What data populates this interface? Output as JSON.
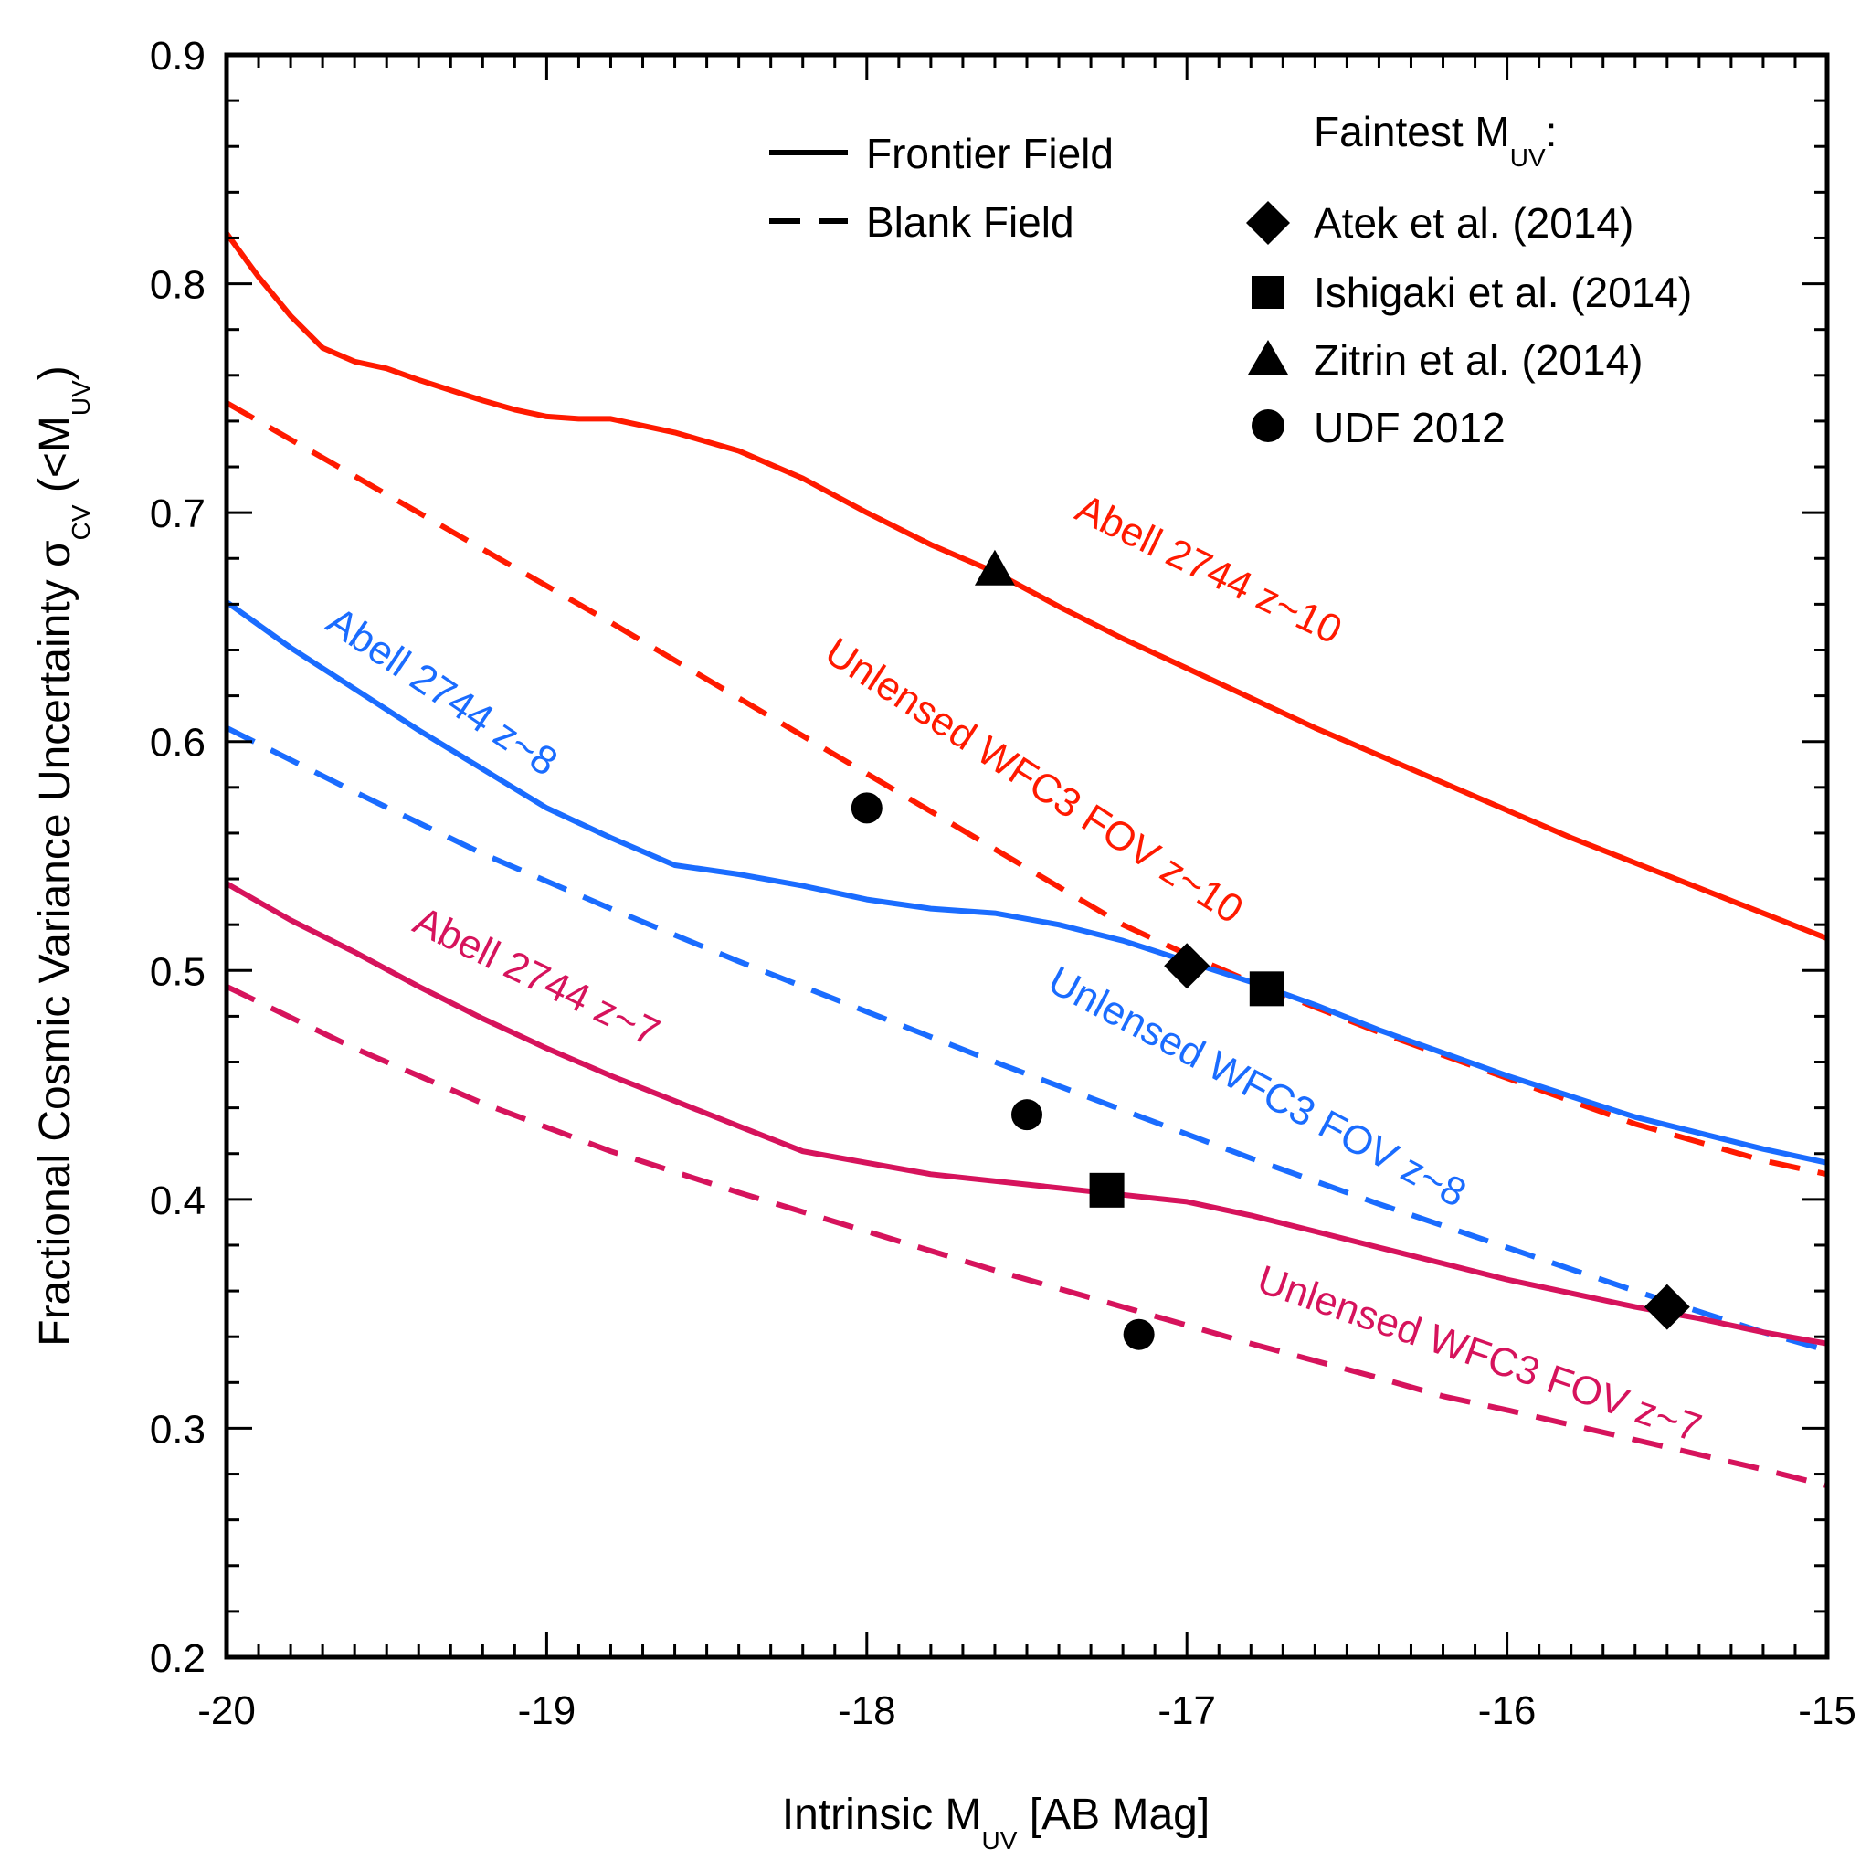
{
  "chart_data": {
    "type": "line",
    "xlabel": {
      "main": "Intrinsic M",
      "sub": "UV",
      "suffix": " [AB Mag]"
    },
    "ylabel": {
      "main": "Fractional Cosmic Variance Uncertainty σ",
      "sub": "CV",
      "mid": " (<M",
      "sub2": "UV",
      "suffix": ")"
    },
    "xlim": [
      -20,
      -15
    ],
    "ylim": [
      0.2,
      0.9
    ],
    "x_ticks": [
      -20,
      -19,
      -18,
      -17,
      -16,
      -15
    ],
    "x_tick_labels": [
      "-20",
      "-19",
      "-18",
      "-17",
      "-16",
      "-15"
    ],
    "y_ticks": [
      0.2,
      0.3,
      0.4,
      0.5,
      0.6,
      0.7,
      0.8,
      0.9
    ],
    "y_tick_labels": [
      "0.2",
      "0.3",
      "0.4",
      "0.5",
      "0.6",
      "0.7",
      "0.8",
      "0.9"
    ],
    "series": [
      {
        "id": "a2744-z10",
        "name": "Abell 2744 z~10",
        "style": "solid",
        "color": "#ff1a00",
        "points": [
          [
            -20,
            0.822
          ],
          [
            -19.9,
            0.803
          ],
          [
            -19.8,
            0.786
          ],
          [
            -19.7,
            0.772
          ],
          [
            -19.6,
            0.766
          ],
          [
            -19.5,
            0.763
          ],
          [
            -19.4,
            0.758
          ],
          [
            -19.2,
            0.749
          ],
          [
            -19.1,
            0.745
          ],
          [
            -19.0,
            0.742
          ],
          [
            -18.9,
            0.741
          ],
          [
            -18.8,
            0.741
          ],
          [
            -18.6,
            0.735
          ],
          [
            -18.4,
            0.727
          ],
          [
            -18.2,
            0.715
          ],
          [
            -18.0,
            0.7
          ],
          [
            -17.8,
            0.686
          ],
          [
            -17.6,
            0.674
          ],
          [
            -17.4,
            0.659
          ],
          [
            -17.2,
            0.645
          ],
          [
            -17.0,
            0.632
          ],
          [
            -16.8,
            0.619
          ],
          [
            -16.6,
            0.606
          ],
          [
            -16.4,
            0.594
          ],
          [
            -16.2,
            0.582
          ],
          [
            -16.0,
            0.57
          ],
          [
            -15.8,
            0.558
          ],
          [
            -15.6,
            0.547
          ],
          [
            -15.4,
            0.536
          ],
          [
            -15.2,
            0.525
          ],
          [
            -15.0,
            0.514
          ]
        ]
      },
      {
        "id": "unlensed-z10",
        "name": "Unlensed WFC3 FOV z~10",
        "style": "dashed",
        "color": "#ff1a00",
        "points": [
          [
            -20,
            0.748
          ],
          [
            -19.6,
            0.716
          ],
          [
            -19.2,
            0.684
          ],
          [
            -18.8,
            0.652
          ],
          [
            -18.4,
            0.619
          ],
          [
            -18.0,
            0.586
          ],
          [
            -17.6,
            0.553
          ],
          [
            -17.2,
            0.52
          ],
          [
            -17.0,
            0.507
          ],
          [
            -16.8,
            0.495
          ],
          [
            -16.6,
            0.484
          ],
          [
            -16.4,
            0.473
          ],
          [
            -16.0,
            0.453
          ],
          [
            -15.6,
            0.433
          ],
          [
            -15.2,
            0.417
          ],
          [
            -15.0,
            0.411
          ]
        ]
      },
      {
        "id": "a2744-z8",
        "name": "Abell 2744 z~8",
        "style": "solid",
        "color": "#1a6cff",
        "points": [
          [
            -20,
            0.661
          ],
          [
            -19.8,
            0.641
          ],
          [
            -19.6,
            0.623
          ],
          [
            -19.4,
            0.605
          ],
          [
            -19.2,
            0.588
          ],
          [
            -19.0,
            0.571
          ],
          [
            -18.8,
            0.558
          ],
          [
            -18.6,
            0.546
          ],
          [
            -18.4,
            0.542
          ],
          [
            -18.2,
            0.537
          ],
          [
            -18.0,
            0.531
          ],
          [
            -17.8,
            0.527
          ],
          [
            -17.6,
            0.525
          ],
          [
            -17.4,
            0.52
          ],
          [
            -17.2,
            0.513
          ],
          [
            -17.0,
            0.504
          ],
          [
            -16.8,
            0.495
          ],
          [
            -16.6,
            0.485
          ],
          [
            -16.4,
            0.474
          ],
          [
            -16.2,
            0.464
          ],
          [
            -16.0,
            0.454
          ],
          [
            -15.8,
            0.445
          ],
          [
            -15.6,
            0.436
          ],
          [
            -15.4,
            0.429
          ],
          [
            -15.2,
            0.422
          ],
          [
            -15.0,
            0.416
          ]
        ]
      },
      {
        "id": "unlensed-z8",
        "name": "Unlensed WFC3 FOV z~8",
        "style": "dashed",
        "color": "#1a6cff",
        "points": [
          [
            -20,
            0.606
          ],
          [
            -19.6,
            0.578
          ],
          [
            -19.2,
            0.551
          ],
          [
            -18.8,
            0.527
          ],
          [
            -18.4,
            0.504
          ],
          [
            -18.0,
            0.482
          ],
          [
            -17.6,
            0.46
          ],
          [
            -17.2,
            0.439
          ],
          [
            -16.8,
            0.418
          ],
          [
            -16.4,
            0.398
          ],
          [
            -16.0,
            0.379
          ],
          [
            -15.6,
            0.36
          ],
          [
            -15.2,
            0.342
          ],
          [
            -15.0,
            0.334
          ]
        ]
      },
      {
        "id": "a2744-z7",
        "name": "Abell 2744 z~7",
        "style": "solid",
        "color": "#d6135c",
        "points": [
          [
            -20,
            0.538
          ],
          [
            -19.8,
            0.522
          ],
          [
            -19.6,
            0.508
          ],
          [
            -19.4,
            0.493
          ],
          [
            -19.2,
            0.479
          ],
          [
            -19.0,
            0.466
          ],
          [
            -18.8,
            0.454
          ],
          [
            -18.6,
            0.443
          ],
          [
            -18.4,
            0.432
          ],
          [
            -18.2,
            0.421
          ],
          [
            -18.0,
            0.416
          ],
          [
            -17.8,
            0.411
          ],
          [
            -17.6,
            0.408
          ],
          [
            -17.4,
            0.405
          ],
          [
            -17.2,
            0.402
          ],
          [
            -17.0,
            0.399
          ],
          [
            -16.8,
            0.393
          ],
          [
            -16.6,
            0.386
          ],
          [
            -16.4,
            0.379
          ],
          [
            -16.2,
            0.372
          ],
          [
            -16.0,
            0.365
          ],
          [
            -15.8,
            0.359
          ],
          [
            -15.6,
            0.353
          ],
          [
            -15.4,
            0.348
          ],
          [
            -15.2,
            0.342
          ],
          [
            -15.0,
            0.337
          ]
        ]
      },
      {
        "id": "unlensed-z7",
        "name": "Unlensed WFC3 FOV z~7",
        "style": "dashed",
        "color": "#d6135c",
        "points": [
          [
            -20,
            0.493
          ],
          [
            -19.6,
            0.466
          ],
          [
            -19.2,
            0.442
          ],
          [
            -18.8,
            0.421
          ],
          [
            -18.4,
            0.403
          ],
          [
            -18.0,
            0.386
          ],
          [
            -17.6,
            0.369
          ],
          [
            -17.2,
            0.353
          ],
          [
            -16.8,
            0.337
          ],
          [
            -16.4,
            0.322
          ],
          [
            -16.2,
            0.314
          ],
          [
            -16.0,
            0.308
          ],
          [
            -15.6,
            0.295
          ],
          [
            -15.2,
            0.282
          ],
          [
            -15.0,
            0.275
          ]
        ]
      }
    ],
    "curve_labels": [
      {
        "text": "Abell 2744 z~10",
        "series": "a2744-z10",
        "x": -16.95,
        "y": 0.67,
        "angle": 26
      },
      {
        "text": "Unlensed WFC3 FOV z~10",
        "series": "unlensed-z10",
        "x": -17.5,
        "y": 0.578,
        "angle": 33
      },
      {
        "text": "Abell 2744 z~8",
        "series": "a2744-z8",
        "x": -19.35,
        "y": 0.617,
        "angle": 34
      },
      {
        "text": "Unlensed WFC3 FOV z~8",
        "series": "unlensed-z8",
        "x": -16.8,
        "y": 0.444,
        "angle": 28
      },
      {
        "text": "Abell 2744 z~7",
        "series": "a2744-z7",
        "x": -19.05,
        "y": 0.492,
        "angle": 26
      },
      {
        "text": "Unlensed WFC3 FOV z~7",
        "series": "unlensed-z7",
        "x": -16.1,
        "y": 0.327,
        "angle": 19
      }
    ],
    "markers": [
      {
        "shape": "triangle",
        "x": -17.6,
        "y": 0.675,
        "legend_ref": "zitrin"
      },
      {
        "shape": "circle",
        "x": -18.0,
        "y": 0.571,
        "legend_ref": "udf"
      },
      {
        "shape": "diamond",
        "x": -17.0,
        "y": 0.502,
        "legend_ref": "atek"
      },
      {
        "shape": "square",
        "x": -16.75,
        "y": 0.492,
        "legend_ref": "ishigaki"
      },
      {
        "shape": "circle",
        "x": -17.5,
        "y": 0.437,
        "legend_ref": "udf"
      },
      {
        "shape": "square",
        "x": -17.25,
        "y": 0.404,
        "legend_ref": "ishigaki"
      },
      {
        "shape": "diamond",
        "x": -15.5,
        "y": 0.353,
        "legend_ref": "atek"
      },
      {
        "shape": "circle",
        "x": -17.15,
        "y": 0.341,
        "legend_ref": "udf"
      }
    ],
    "legend": {
      "position": "top-right",
      "line_styles": [
        {
          "style": "solid",
          "label": "Frontier Field"
        },
        {
          "style": "dashed",
          "label": "Blank Field"
        }
      ],
      "markers_title": {
        "main": "Faintest M",
        "sub": "UV",
        "suffix": ":"
      },
      "marker_entries": [
        {
          "shape": "diamond",
          "label": "Atek et al. (2014)"
        },
        {
          "shape": "square",
          "label": "Ishigaki et al. (2014)"
        },
        {
          "shape": "triangle",
          "label": "Zitrin et al. (2014)"
        },
        {
          "shape": "circle",
          "label": "UDF 2012"
        }
      ]
    },
    "grid": false
  }
}
